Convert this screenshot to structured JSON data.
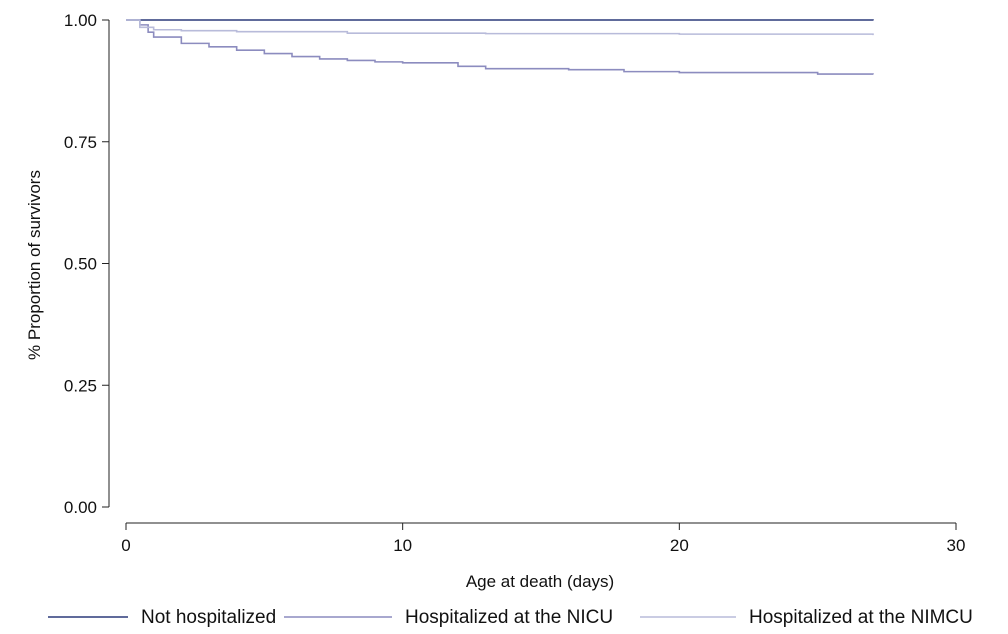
{
  "chart_data": {
    "type": "line",
    "title": "",
    "xlabel": "Age at death (days)",
    "ylabel": "% Proportion of survivors",
    "xlim": [
      0,
      30
    ],
    "ylim": [
      0,
      1
    ],
    "xticks": [
      0,
      10,
      20,
      30
    ],
    "xtick_labels": [
      "0",
      "10",
      "20",
      "30"
    ],
    "yticks": [
      0,
      0.25,
      0.5,
      0.75,
      1
    ],
    "ytick_labels": [
      "0.00",
      "0.25",
      "0.50",
      "0.75",
      "1.00"
    ],
    "grid": false,
    "legend_position": "bottom",
    "step": true,
    "series": [
      {
        "name": "Not hospitalized",
        "color": "#2b3a7a",
        "x": [
          0,
          27
        ],
        "y": [
          1.0,
          0.999
        ]
      },
      {
        "name": "Hospitalized at the NICU",
        "color": "#8c8cbf",
        "x": [
          0,
          0.5,
          0.8,
          1,
          2,
          3,
          4,
          5,
          6,
          7,
          8,
          9,
          10,
          12,
          13,
          16,
          18,
          20,
          25,
          27
        ],
        "y": [
          1.0,
          0.99,
          0.975,
          0.965,
          0.952,
          0.945,
          0.938,
          0.931,
          0.925,
          0.92,
          0.917,
          0.914,
          0.912,
          0.905,
          0.9,
          0.898,
          0.894,
          0.892,
          0.889,
          0.888
        ]
      },
      {
        "name": "Hospitalized at the NIMCU",
        "color": "#b8bbda",
        "x": [
          0,
          0.5,
          1,
          2,
          4,
          8,
          13,
          20,
          27
        ],
        "y": [
          1.0,
          0.985,
          0.98,
          0.978,
          0.976,
          0.973,
          0.972,
          0.971,
          0.969
        ]
      }
    ]
  }
}
